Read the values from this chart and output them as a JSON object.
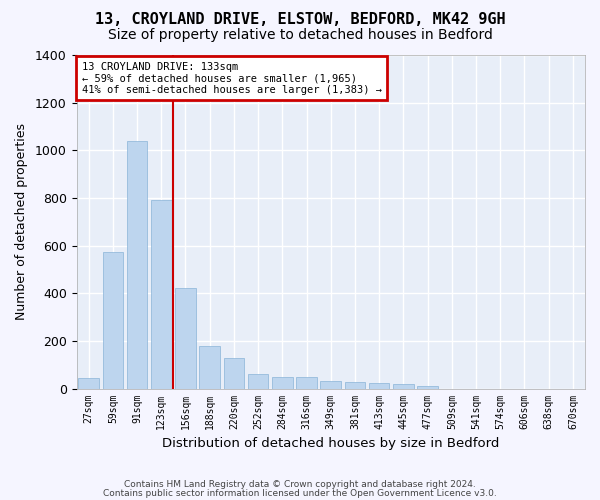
{
  "title1": "13, CROYLAND DRIVE, ELSTOW, BEDFORD, MK42 9GH",
  "title2": "Size of property relative to detached houses in Bedford",
  "xlabel": "Distribution of detached houses by size in Bedford",
  "ylabel": "Number of detached properties",
  "categories": [
    "27sqm",
    "59sqm",
    "91sqm",
    "123sqm",
    "156sqm",
    "188sqm",
    "220sqm",
    "252sqm",
    "284sqm",
    "316sqm",
    "349sqm",
    "381sqm",
    "413sqm",
    "445sqm",
    "477sqm",
    "509sqm",
    "541sqm",
    "574sqm",
    "606sqm",
    "638sqm",
    "670sqm"
  ],
  "values": [
    45,
    575,
    1040,
    790,
    420,
    178,
    128,
    63,
    50,
    47,
    30,
    27,
    22,
    18,
    12,
    0,
    0,
    0,
    0,
    0,
    0
  ],
  "bar_color": "#bdd5ee",
  "bar_edge_color": "#8ab4d8",
  "vline_color": "#cc0000",
  "vline_x": 3.5,
  "annotation_line1": "13 CROYLAND DRIVE: 133sqm",
  "annotation_line2": "← 59% of detached houses are smaller (1,965)",
  "annotation_line3": "41% of semi-detached houses are larger (1,383) →",
  "annotation_box_color": "#ffffff",
  "annotation_box_edge": "#cc0000",
  "footer1": "Contains HM Land Registry data © Crown copyright and database right 2024.",
  "footer2": "Contains public sector information licensed under the Open Government Licence v3.0.",
  "ylim": [
    0,
    1400
  ],
  "yticks": [
    0,
    200,
    400,
    600,
    800,
    1000,
    1200,
    1400
  ],
  "background_color": "#e8eef8",
  "grid_color": "#ffffff",
  "title1_fontsize": 11,
  "title2_fontsize": 10,
  "fig_bg": "#f5f5ff"
}
